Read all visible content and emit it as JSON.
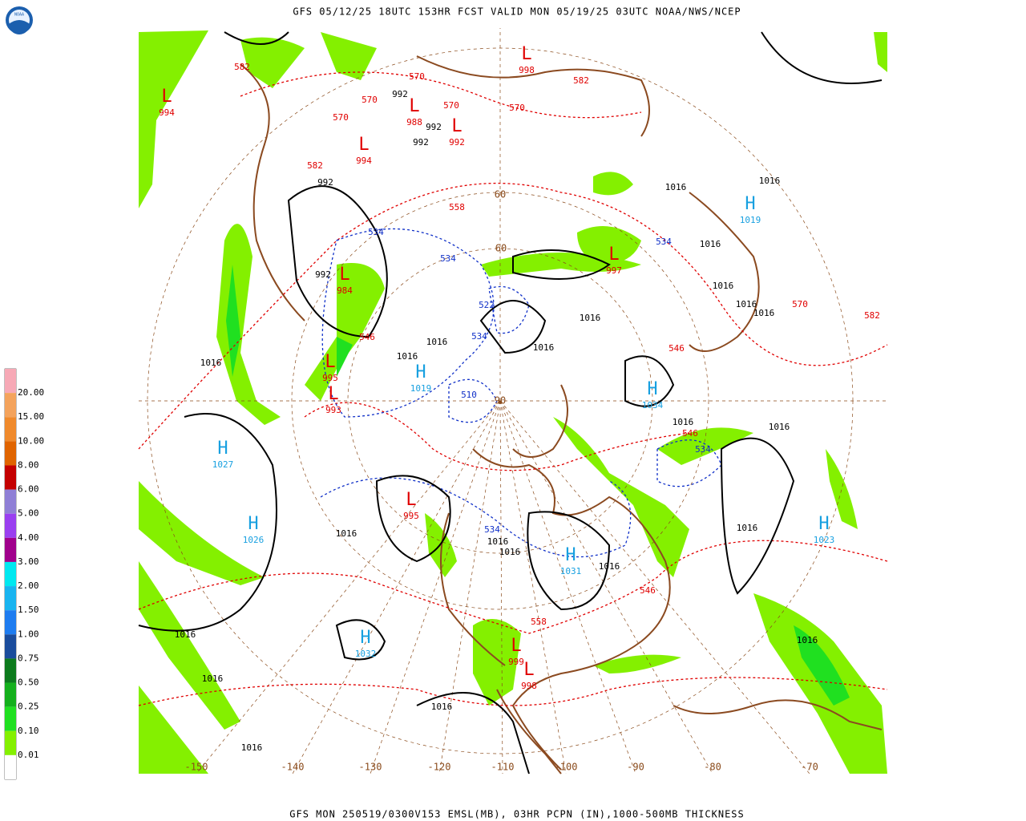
{
  "header": {
    "title": "GFS 05/12/25 18UTC 153HR FCST VALID MON 05/19/25 03UTC NOAA/NWS/NCEP",
    "logo": "NOAA"
  },
  "footer": {
    "caption": "GFS MON 250519/0300V153 EMSL(MB), 03HR PCPN (IN),1000-500MB THICKNESS"
  },
  "legend": {
    "labels": [
      "20.00",
      "15.00",
      "10.00",
      "8.00",
      "6.00",
      "5.00",
      "4.00",
      "3.00",
      "2.00",
      "1.50",
      "1.00",
      "0.75",
      "0.50",
      "0.25",
      "0.10",
      "0.01"
    ],
    "colors": [
      "#f7a9b6",
      "#f4a35c",
      "#f08a2c",
      "#e06400",
      "#c40000",
      "#8f7fd6",
      "#9a3ff0",
      "#a0008c",
      "#00e8f0",
      "#18b4f0",
      "#1e7cf0",
      "#1a4c9c",
      "#0c7a1c",
      "#14b01c",
      "#20e020",
      "#84f000",
      "#ffffff"
    ]
  },
  "longitudes": [
    "-150",
    "-140",
    "-130",
    "-120",
    "-110",
    "-100",
    "-90",
    "-80",
    "-70"
  ],
  "latitudes": [
    "60",
    "60",
    "90"
  ],
  "highs": [
    {
      "symbol": "H",
      "value": "1027"
    },
    {
      "symbol": "H",
      "value": "1026"
    },
    {
      "symbol": "H",
      "value": "1032"
    },
    {
      "symbol": "H",
      "value": "1031"
    },
    {
      "symbol": "H",
      "value": "1019"
    },
    {
      "symbol": "H",
      "value": "1023"
    },
    {
      "symbol": "H",
      "value": "1034"
    },
    {
      "symbol": "H",
      "value": "1019"
    }
  ],
  "lows": [
    {
      "symbol": "L",
      "value": "998"
    },
    {
      "symbol": "L",
      "value": "988"
    },
    {
      "symbol": "L",
      "value": "992"
    },
    {
      "symbol": "L",
      "value": "994"
    },
    {
      "symbol": "L",
      "value": "984"
    },
    {
      "symbol": "L",
      "value": "995"
    },
    {
      "symbol": "L",
      "value": "993"
    },
    {
      "symbol": "L",
      "value": "995"
    },
    {
      "symbol": "L",
      "value": "999"
    },
    {
      "symbol": "L",
      "value": "997"
    },
    {
      "symbol": "L",
      "value": "998"
    },
    {
      "symbol": "L",
      "value": "994"
    }
  ],
  "isobar_labels": [
    "1016",
    "1016",
    "1016",
    "1016",
    "1016",
    "1016",
    "1016",
    "1016",
    "1016",
    "1016",
    "1016",
    "1016",
    "1016",
    "1016",
    "1016",
    "1016",
    "1016",
    "1016",
    "1016",
    "1016",
    "1016",
    "1016",
    "1016",
    "992",
    "992",
    "992",
    "992",
    "992"
  ],
  "thickness_labels": [
    "570",
    "570",
    "570",
    "570",
    "570",
    "582",
    "582",
    "582",
    "582",
    "558",
    "546",
    "546",
    "546",
    "558",
    "570",
    "546"
  ],
  "cold_thickness_labels": [
    "534",
    "534",
    "534",
    "534",
    "534",
    "522",
    "510",
    "534"
  ]
}
